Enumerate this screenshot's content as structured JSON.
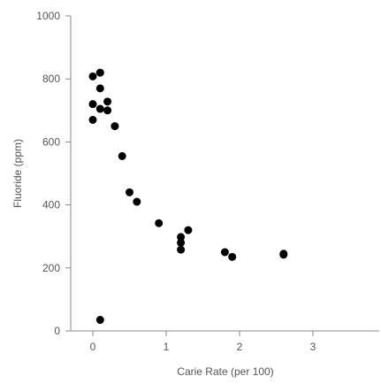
{
  "chart_data": {
    "type": "scatter",
    "title": "",
    "xlabel": "Carie Rate (per 100)",
    "ylabel": "Fluoride (ppm)",
    "xlim": [
      -0.3,
      3.9
    ],
    "ylim": [
      0,
      1000
    ],
    "x_ticks": [
      0,
      1,
      2,
      3
    ],
    "y_ticks": [
      0,
      200,
      400,
      600,
      800,
      1000
    ],
    "grid": false,
    "legend": "none",
    "series": [
      {
        "color": "#000000",
        "points": [
          {
            "x": 0.0,
            "y": 808
          },
          {
            "x": 0.1,
            "y": 820
          },
          {
            "x": 0.1,
            "y": 770
          },
          {
            "x": 0.0,
            "y": 720
          },
          {
            "x": 0.1,
            "y": 705
          },
          {
            "x": 0.2,
            "y": 728
          },
          {
            "x": 0.2,
            "y": 700
          },
          {
            "x": 0.0,
            "y": 670
          },
          {
            "x": 0.3,
            "y": 650
          },
          {
            "x": 0.4,
            "y": 555
          },
          {
            "x": 0.5,
            "y": 440
          },
          {
            "x": 0.6,
            "y": 410
          },
          {
            "x": 0.9,
            "y": 342
          },
          {
            "x": 1.3,
            "y": 320
          },
          {
            "x": 1.2,
            "y": 298
          },
          {
            "x": 1.2,
            "y": 280
          },
          {
            "x": 1.2,
            "y": 258
          },
          {
            "x": 1.8,
            "y": 250
          },
          {
            "x": 1.9,
            "y": 235
          },
          {
            "x": 2.6,
            "y": 245
          },
          {
            "x": 2.6,
            "y": 242
          },
          {
            "x": 0.1,
            "y": 35
          }
        ]
      }
    ]
  }
}
